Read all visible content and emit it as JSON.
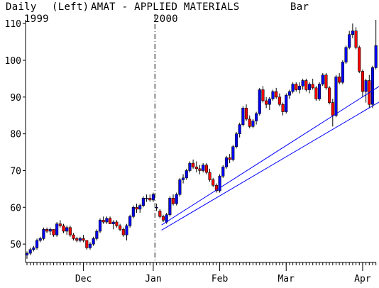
{
  "header": {
    "period": "Daily",
    "scale": "(Left)",
    "symbol": "AMAT - APPLIED MATERIALS",
    "style": "Bar",
    "year_left": "1999",
    "year_right": "2000"
  },
  "colors": {
    "up": "#0000ff",
    "down": "#ff0000",
    "wick": "#000000",
    "trendline": "#0000ff",
    "axis": "#000000",
    "year_divider": "#000000"
  },
  "chart_data": {
    "type": "candlestick",
    "title": "AMAT - APPLIED MATERIALS",
    "ylim": [
      45,
      111
    ],
    "yticks": [
      50,
      60,
      70,
      80,
      90,
      100,
      110
    ],
    "ylabels": [
      "50",
      "60",
      "70",
      "80",
      "90",
      "100",
      "110"
    ],
    "xlabels": [
      "Dec",
      "Jan",
      "Feb",
      "Mar",
      "Apr"
    ],
    "month_start_index": [
      17,
      38,
      58,
      78,
      101
    ],
    "year_divider_index": 38.5,
    "grid": false,
    "ohlc": [
      [
        47,
        48,
        46,
        47.5
      ],
      [
        47.5,
        49,
        47,
        48.5
      ],
      [
        48.5,
        49.5,
        48,
        49
      ],
      [
        49,
        51.5,
        48.5,
        51
      ],
      [
        51,
        52,
        50.5,
        51.5
      ],
      [
        51.5,
        54.5,
        51,
        54
      ],
      [
        54,
        54.5,
        53,
        53.5
      ],
      [
        53.5,
        54.5,
        52.5,
        54
      ],
      [
        54,
        54,
        52,
        52.5
      ],
      [
        52.5,
        56,
        52,
        55.5
      ],
      [
        55.5,
        56.5,
        54.5,
        55
      ],
      [
        55,
        55.5,
        53,
        53.5
      ],
      [
        53.5,
        55,
        52.5,
        54.5
      ],
      [
        54.5,
        55,
        52,
        52.5
      ],
      [
        52.5,
        53,
        51,
        51.5
      ],
      [
        51.5,
        52,
        50.5,
        51
      ],
      [
        51,
        52,
        50.5,
        51.5
      ],
      [
        51.5,
        52.5,
        50.5,
        51
      ],
      [
        51,
        51,
        48.5,
        49
      ],
      [
        49,
        50.5,
        48.5,
        50
      ],
      [
        50,
        52,
        49.5,
        51.5
      ],
      [
        51.5,
        54,
        51,
        53.5
      ],
      [
        53.5,
        57,
        53,
        56.5
      ],
      [
        56.5,
        57.5,
        55.5,
        56
      ],
      [
        56,
        57.5,
        55.5,
        57
      ],
      [
        57,
        57.5,
        55.5,
        55.5
      ],
      [
        55.5,
        56.5,
        54,
        56
      ],
      [
        56,
        56.5,
        54.5,
        55
      ],
      [
        55,
        55.5,
        53.5,
        54
      ],
      [
        54,
        54.5,
        52,
        52.5
      ],
      [
        52.5,
        55.5,
        51,
        55
      ],
      [
        55,
        58,
        54.5,
        57.5
      ],
      [
        57.5,
        60.5,
        57,
        60
      ],
      [
        60,
        61,
        58.5,
        59.5
      ],
      [
        59.5,
        61,
        58.5,
        60.5
      ],
      [
        60.5,
        63,
        60,
        62.5
      ],
      [
        62.5,
        63.5,
        61.5,
        62.5
      ],
      [
        62.5,
        63.5,
        61.5,
        62
      ],
      [
        62,
        64,
        61.5,
        63.5
      ],
      [
        60,
        61,
        59,
        60
      ],
      [
        59,
        59.5,
        57,
        57.5
      ],
      [
        57.5,
        58,
        56,
        56.5
      ],
      [
        56,
        58.5,
        55.5,
        58
      ],
      [
        58,
        63,
        57.5,
        62.5
      ],
      [
        62.5,
        63.5,
        60.5,
        61
      ],
      [
        61,
        64,
        60.5,
        63.5
      ],
      [
        63.5,
        68,
        63,
        67.5
      ],
      [
        67.5,
        69,
        66.5,
        68
      ],
      [
        68,
        70.5,
        67.5,
        70
      ],
      [
        70,
        72.5,
        69.5,
        72
      ],
      [
        72,
        73,
        70.5,
        71
      ],
      [
        71,
        72.5,
        69.5,
        70.5
      ],
      [
        70.5,
        71.5,
        69,
        70
      ],
      [
        70,
        72,
        69.5,
        71.5
      ],
      [
        71.5,
        72,
        69,
        69.5
      ],
      [
        69.5,
        70.5,
        67,
        67.5
      ],
      [
        67.5,
        68,
        65.5,
        66
      ],
      [
        66,
        66.5,
        64,
        64.5
      ],
      [
        64.5,
        69,
        64,
        68.5
      ],
      [
        68.5,
        71.5,
        68,
        71
      ],
      [
        71,
        74,
        70.5,
        73.5
      ],
      [
        73.5,
        74.5,
        72,
        73
      ],
      [
        73,
        77,
        72.5,
        76.5
      ],
      [
        76.5,
        80.5,
        76,
        80
      ],
      [
        80,
        83,
        79,
        82.5
      ],
      [
        82.5,
        87.5,
        82,
        87
      ],
      [
        87,
        88,
        83.5,
        84
      ],
      [
        84,
        85,
        81.5,
        82
      ],
      [
        82,
        84,
        81.5,
        83.5
      ],
      [
        83.5,
        86,
        82.5,
        85.5
      ],
      [
        85.5,
        92.5,
        85,
        92
      ],
      [
        92,
        93,
        88.5,
        89
      ],
      [
        89,
        90,
        87,
        88
      ],
      [
        88,
        90,
        86.5,
        89.5
      ],
      [
        89.5,
        92,
        89,
        91.5
      ],
      [
        91.5,
        92.5,
        89.5,
        90
      ],
      [
        90,
        91,
        87.5,
        88
      ],
      [
        88,
        88.5,
        85,
        86
      ],
      [
        86,
        91,
        85.5,
        90.5
      ],
      [
        90.5,
        92,
        89.5,
        91.5
      ],
      [
        91.5,
        94,
        91,
        93.5
      ],
      [
        93.5,
        94,
        91.5,
        92
      ],
      [
        92,
        94,
        91,
        93
      ],
      [
        93,
        95,
        92,
        94.5
      ],
      [
        94.5,
        95,
        91.5,
        92
      ],
      [
        92,
        94,
        91,
        93.5
      ],
      [
        93.5,
        95,
        92,
        92.5
      ],
      [
        92.5,
        93,
        89,
        89.5
      ],
      [
        89.5,
        94,
        89,
        93.5
      ],
      [
        93.5,
        96.5,
        93,
        96
      ],
      [
        96,
        96.5,
        92,
        92.5
      ],
      [
        92.5,
        93,
        88,
        88.5
      ],
      [
        88.5,
        89.5,
        82,
        85
      ],
      [
        85,
        96,
        84.5,
        95.5
      ],
      [
        95.5,
        96.5,
        93.5,
        94
      ],
      [
        94,
        100,
        93.5,
        99.5
      ],
      [
        99.5,
        104,
        99,
        103.5
      ],
      [
        103.5,
        108,
        103,
        107
      ],
      [
        107,
        110,
        106,
        108
      ],
      [
        108,
        109,
        103,
        103.5
      ],
      [
        103.5,
        104,
        96.5,
        97
      ],
      [
        97,
        97.5,
        90,
        91.5
      ],
      [
        91.5,
        95,
        88.5,
        94.5
      ],
      [
        94.5,
        96,
        87,
        88
      ],
      [
        88,
        98.5,
        87,
        98
      ],
      [
        98,
        111,
        97.5,
        104
      ]
    ],
    "trendlines": [
      {
        "from": [
          40.5,
          55.2
        ],
        "to": [
          107,
          93.5
        ]
      },
      {
        "from": [
          40.5,
          53.8
        ],
        "to": [
          107,
          89.2
        ]
      }
    ],
    "last_marker": {
      "x": 108.5,
      "y": 89.8
    }
  }
}
